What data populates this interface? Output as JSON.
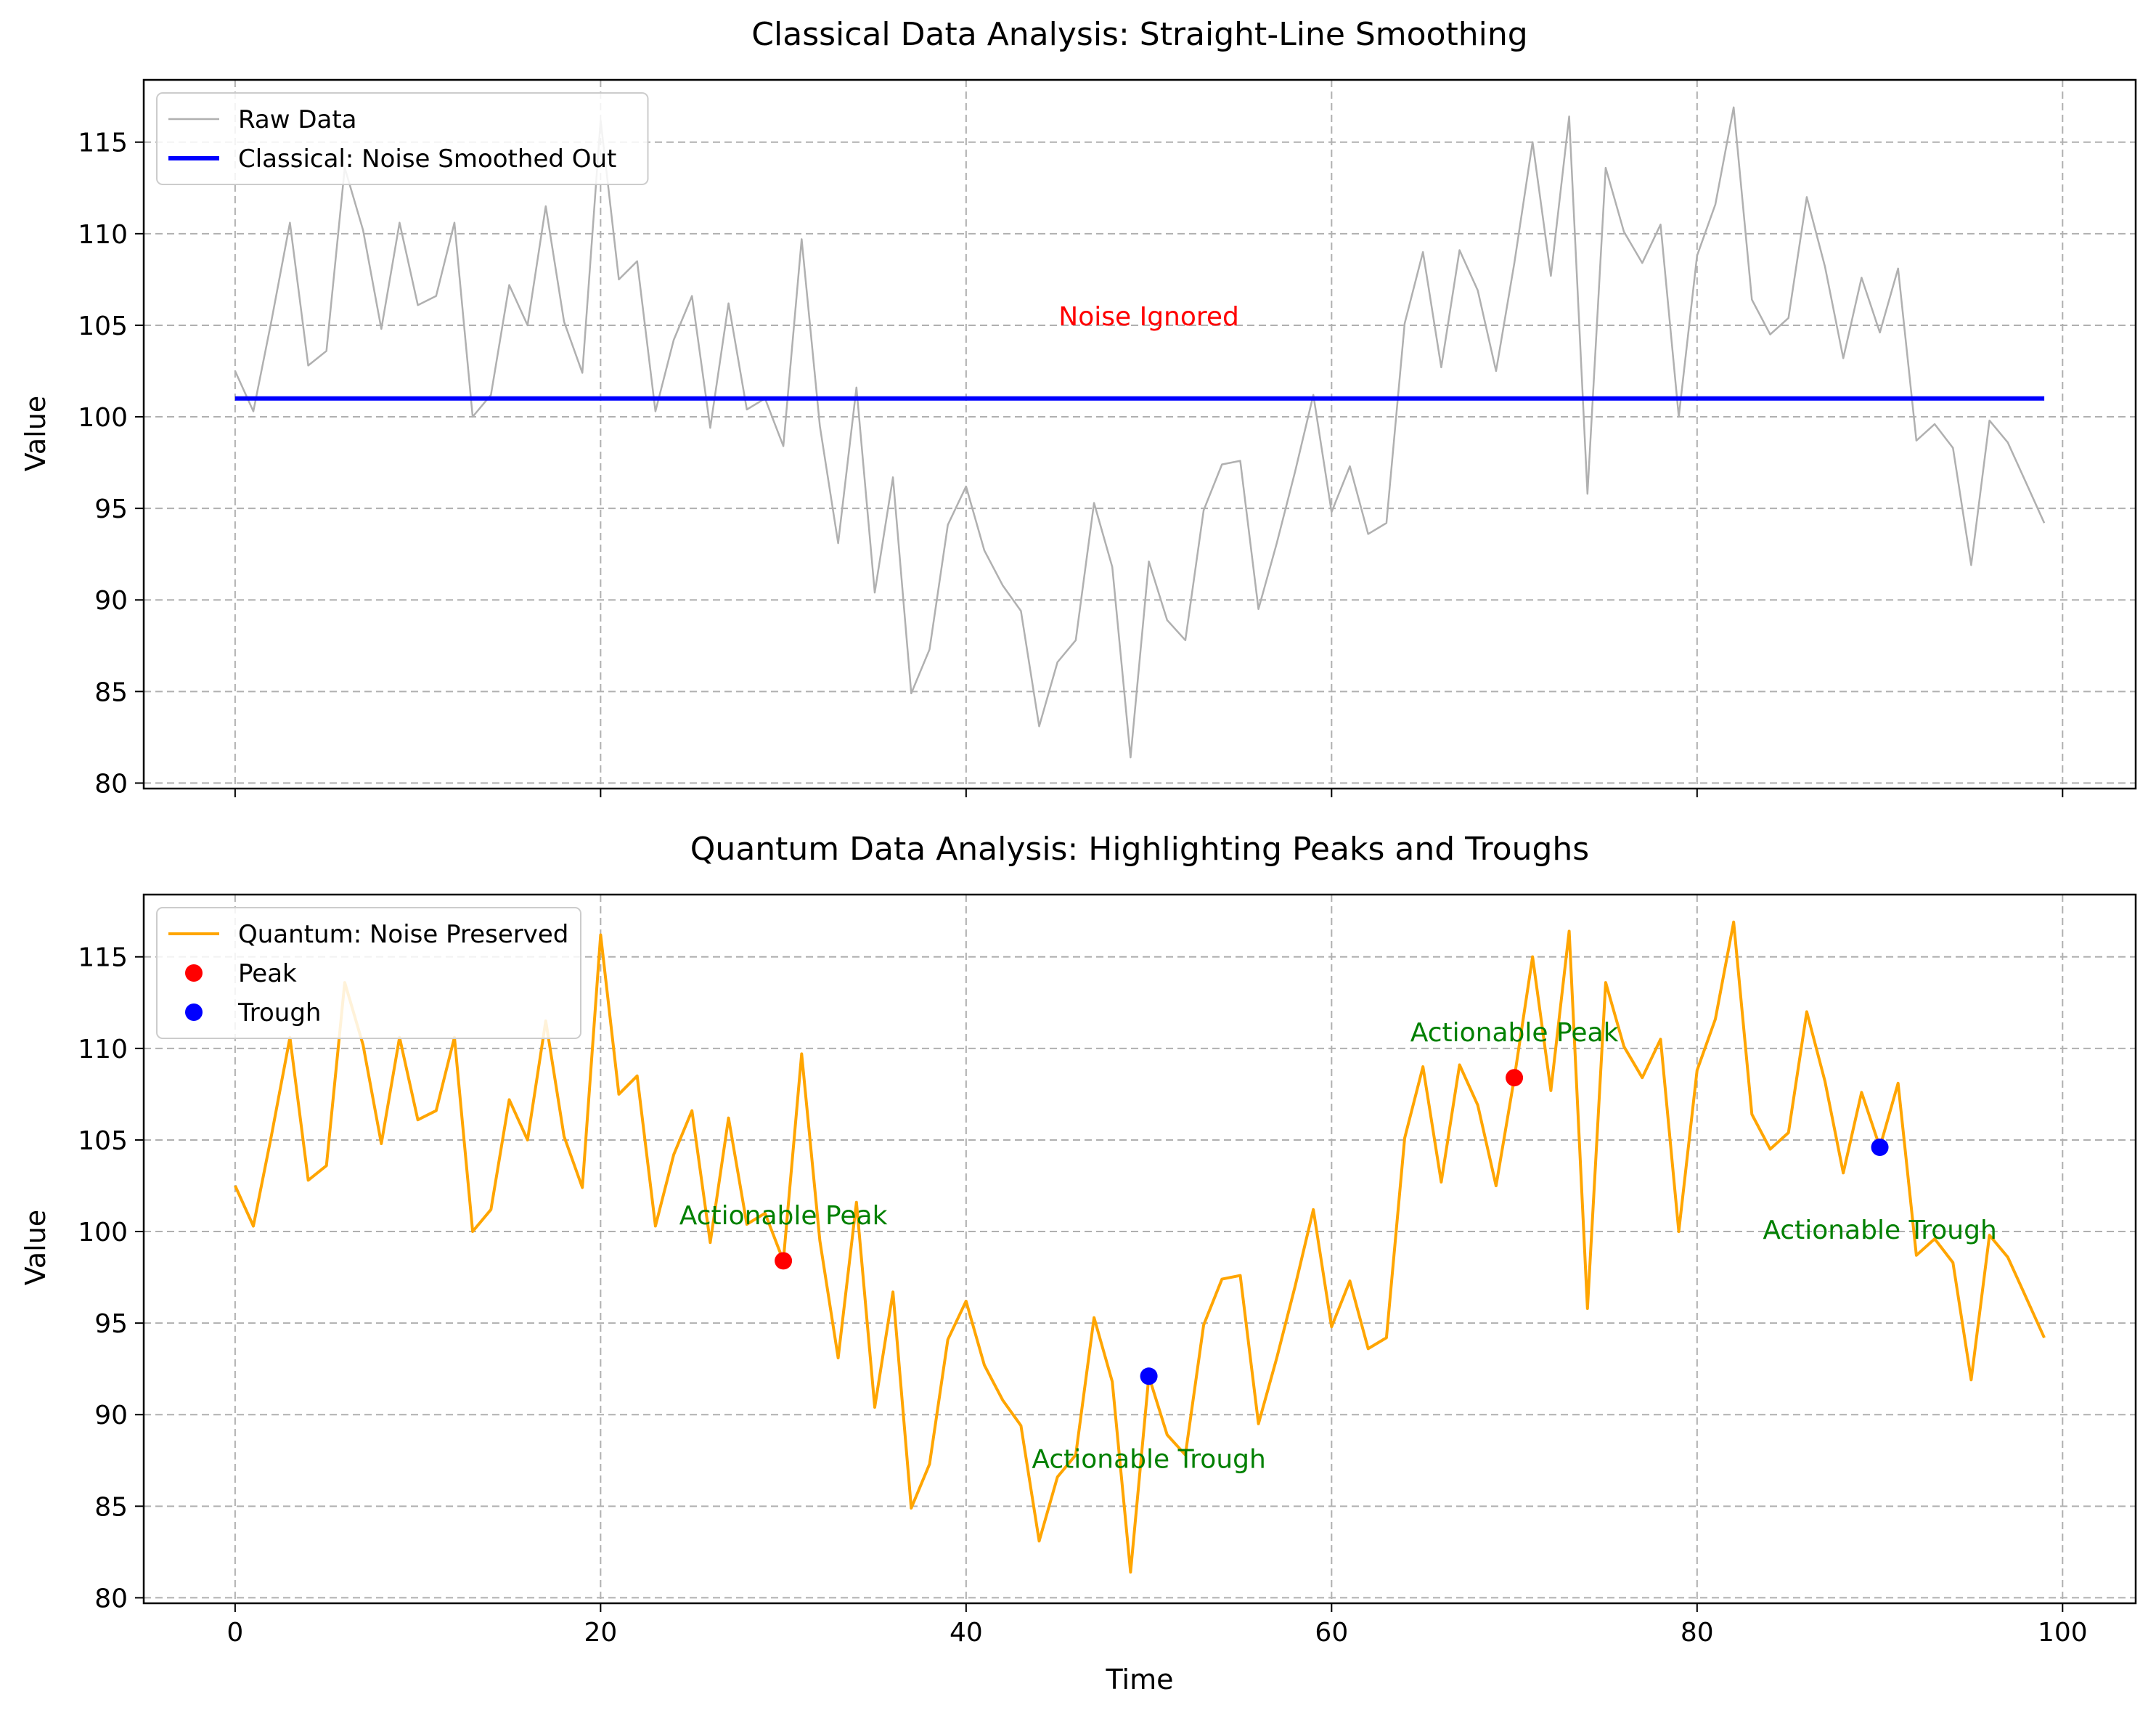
{
  "chart_data": [
    {
      "type": "line",
      "title": "Classical Data Analysis: Straight-Line Smoothing",
      "xlabel": "",
      "ylabel": "Value",
      "xlim": [
        -5,
        104
      ],
      "ylim": [
        79.7,
        118.4
      ],
      "xticks": [
        0,
        20,
        40,
        60,
        80,
        100
      ],
      "xtick_labels": [
        "",
        "",
        "",
        "",
        "",
        ""
      ],
      "yticks": [
        80,
        85,
        90,
        95,
        100,
        105,
        110,
        115
      ],
      "ytick_labels": [
        "80",
        "85",
        "90",
        "95",
        "100",
        "105",
        "110",
        "115"
      ],
      "grid": true,
      "legend": "top-left",
      "series": [
        {
          "name": "Raw Data",
          "color": "#b0b0b0",
          "x": [
            0,
            1,
            2,
            3,
            4,
            5,
            6,
            7,
            8,
            9,
            10,
            11,
            12,
            13,
            14,
            15,
            16,
            17,
            18,
            19,
            20,
            21,
            22,
            23,
            24,
            25,
            26,
            27,
            28,
            29,
            30,
            31,
            32,
            33,
            34,
            35,
            36,
            37,
            38,
            39,
            40,
            41,
            42,
            43,
            44,
            45,
            46,
            47,
            48,
            49,
            50,
            51,
            52,
            53,
            54,
            55,
            56,
            57,
            58,
            59,
            60,
            61,
            62,
            63,
            64,
            65,
            66,
            67,
            68,
            69,
            70,
            71,
            72,
            73,
            74,
            75,
            76,
            77,
            78,
            79,
            80,
            81,
            82,
            83,
            84,
            85,
            86,
            87,
            88,
            89,
            90,
            91,
            92,
            93,
            94,
            95,
            96,
            97,
            98,
            99
          ],
          "y": [
            102.5,
            100.3,
            105.3,
            110.6,
            102.8,
            103.6,
            113.6,
            110.2,
            104.8,
            110.6,
            106.1,
            106.6,
            110.6,
            100.0,
            101.2,
            107.2,
            105.0,
            111.5,
            105.2,
            102.4,
            116.2,
            107.5,
            108.5,
            100.3,
            104.2,
            106.6,
            99.4,
            106.2,
            100.4,
            101.0,
            98.4,
            109.7,
            99.5,
            93.1,
            101.6,
            90.4,
            96.7,
            84.9,
            87.3,
            94.1,
            96.2,
            92.7,
            90.8,
            89.4,
            83.1,
            86.6,
            87.8,
            95.3,
            91.8,
            81.4,
            92.1,
            88.9,
            87.8,
            94.9,
            97.4,
            97.6,
            89.5,
            93.1,
            97.0,
            101.2,
            94.8,
            97.3,
            93.6,
            94.2,
            105.1,
            109.0,
            102.7,
            109.1,
            106.9,
            102.5,
            108.4,
            115.0,
            107.7,
            116.4,
            95.8,
            113.6,
            110.1,
            108.4,
            110.5,
            100.0,
            108.8,
            111.6,
            116.9,
            106.4,
            104.5,
            105.4,
            112.0,
            108.2,
            103.2,
            107.6,
            104.6,
            108.1,
            98.7,
            99.6,
            98.3,
            91.9,
            99.8,
            98.6,
            96.4,
            94.2
          ]
        },
        {
          "name": "Classical: Noise Smoothed Out",
          "color": "#0000ff",
          "x": [
            0,
            99
          ],
          "y": [
            101.0,
            101.0
          ]
        }
      ],
      "annotations": [
        {
          "text": "Noise Ignored",
          "x": 50,
          "y": 105,
          "color": "#ff0000"
        }
      ]
    },
    {
      "type": "line",
      "title": "Quantum Data Analysis: Highlighting Peaks and Troughs",
      "xlabel": "Time",
      "ylabel": "Value",
      "xlim": [
        -5,
        104
      ],
      "ylim": [
        79.7,
        118.4
      ],
      "xticks": [
        0,
        20,
        40,
        60,
        80,
        100
      ],
      "xtick_labels": [
        "0",
        "20",
        "40",
        "60",
        "80",
        "100"
      ],
      "yticks": [
        80,
        85,
        90,
        95,
        100,
        105,
        110,
        115
      ],
      "ytick_labels": [
        "80",
        "85",
        "90",
        "95",
        "100",
        "105",
        "110",
        "115"
      ],
      "grid": true,
      "legend": "top-left",
      "series": [
        {
          "name": "Quantum: Noise Preserved",
          "color": "#ffa500",
          "x": [
            0,
            1,
            2,
            3,
            4,
            5,
            6,
            7,
            8,
            9,
            10,
            11,
            12,
            13,
            14,
            15,
            16,
            17,
            18,
            19,
            20,
            21,
            22,
            23,
            24,
            25,
            26,
            27,
            28,
            29,
            30,
            31,
            32,
            33,
            34,
            35,
            36,
            37,
            38,
            39,
            40,
            41,
            42,
            43,
            44,
            45,
            46,
            47,
            48,
            49,
            50,
            51,
            52,
            53,
            54,
            55,
            56,
            57,
            58,
            59,
            60,
            61,
            62,
            63,
            64,
            65,
            66,
            67,
            68,
            69,
            70,
            71,
            72,
            73,
            74,
            75,
            76,
            77,
            78,
            79,
            80,
            81,
            82,
            83,
            84,
            85,
            86,
            87,
            88,
            89,
            90,
            91,
            92,
            93,
            94,
            95,
            96,
            97,
            98,
            99
          ],
          "y": [
            102.5,
            100.3,
            105.3,
            110.6,
            102.8,
            103.6,
            113.6,
            110.2,
            104.8,
            110.6,
            106.1,
            106.6,
            110.6,
            100.0,
            101.2,
            107.2,
            105.0,
            111.5,
            105.2,
            102.4,
            116.2,
            107.5,
            108.5,
            100.3,
            104.2,
            106.6,
            99.4,
            106.2,
            100.4,
            101.0,
            98.4,
            109.7,
            99.5,
            93.1,
            101.6,
            90.4,
            96.7,
            84.9,
            87.3,
            94.1,
            96.2,
            92.7,
            90.8,
            89.4,
            83.1,
            86.6,
            87.8,
            95.3,
            91.8,
            81.4,
            92.1,
            88.9,
            87.8,
            94.9,
            97.4,
            97.6,
            89.5,
            93.1,
            97.0,
            101.2,
            94.8,
            97.3,
            93.6,
            94.2,
            105.1,
            109.0,
            102.7,
            109.1,
            106.9,
            102.5,
            108.4,
            115.0,
            107.7,
            116.4,
            95.8,
            113.6,
            110.1,
            108.4,
            110.5,
            100.0,
            108.8,
            111.6,
            116.9,
            106.4,
            104.5,
            105.4,
            112.0,
            108.2,
            103.2,
            107.6,
            104.6,
            108.1,
            98.7,
            99.6,
            98.3,
            91.9,
            99.8,
            98.6,
            96.4,
            94.2
          ]
        }
      ],
      "points": [
        {
          "series": "Peak",
          "color": "#ff0000",
          "x": [
            30,
            70
          ],
          "y": [
            98.4,
            108.4
          ]
        },
        {
          "series": "Trough",
          "color": "#0000ff",
          "x": [
            50,
            90
          ],
          "y": [
            92.1,
            104.6
          ]
        }
      ],
      "annotations": [
        {
          "text": "Actionable Peak",
          "x": 30,
          "y": 100.4,
          "color": "#008000"
        },
        {
          "text": "Actionable Peak",
          "x": 70,
          "y": 110.4,
          "color": "#008000"
        },
        {
          "text": "Actionable Trough",
          "x": 50,
          "y": 87.1,
          "color": "#008000"
        },
        {
          "text": "Actionable Trough",
          "x": 90,
          "y": 99.6,
          "color": "#008000"
        }
      ]
    }
  ]
}
